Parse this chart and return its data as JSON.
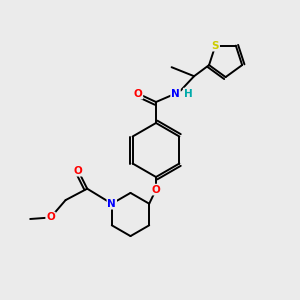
{
  "background_color": "#ebebeb",
  "atom_colors": {
    "C": "#000000",
    "N": "#0000ff",
    "O": "#ff0000",
    "S": "#cccc00",
    "H": "#00aaaa"
  },
  "xlim": [
    0,
    10
  ],
  "ylim": [
    0,
    10
  ],
  "lw": 1.4,
  "fs": 7.5,
  "dbl_off": 0.1
}
